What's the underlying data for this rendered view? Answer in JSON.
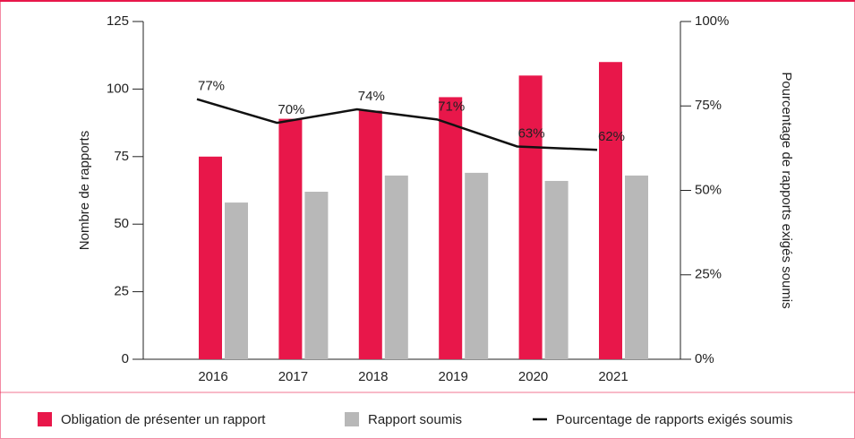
{
  "chart_data": {
    "type": "bar-line",
    "categories": [
      "2016",
      "2017",
      "2018",
      "2019",
      "2020",
      "2021"
    ],
    "series": [
      {
        "name": "Obligation de présenter un rapport",
        "color": "#e8174a",
        "values": [
          75,
          89,
          92,
          97,
          105,
          110
        ]
      },
      {
        "name": "Rapport soumis",
        "color": "#b8b8b8",
        "values": [
          58,
          62,
          68,
          69,
          66,
          68
        ]
      },
      {
        "name": "Pourcentage de rapports exigés soumis",
        "color": "#111111",
        "axis": "y2",
        "values": [
          77,
          70,
          74,
          71,
          63,
          62
        ],
        "value_labels": [
          "77%",
          "70%",
          "74%",
          "71%",
          "63%",
          "62%"
        ]
      }
    ],
    "ylabel": "Nombre de rapports",
    "y2label": "Pourcentage de rapports exigés soumis",
    "ylim": [
      0,
      125
    ],
    "yticks": [
      0,
      25,
      50,
      75,
      100,
      125
    ],
    "y2lim": [
      0,
      100
    ],
    "y2ticks": [
      {
        "value": 0,
        "label": "0%"
      },
      {
        "value": 25,
        "label": "25%"
      },
      {
        "value": 50,
        "label": "50%"
      },
      {
        "value": 75,
        "label": "75%"
      },
      {
        "value": 100,
        "label": "100%"
      }
    ],
    "legend": "bottom"
  }
}
